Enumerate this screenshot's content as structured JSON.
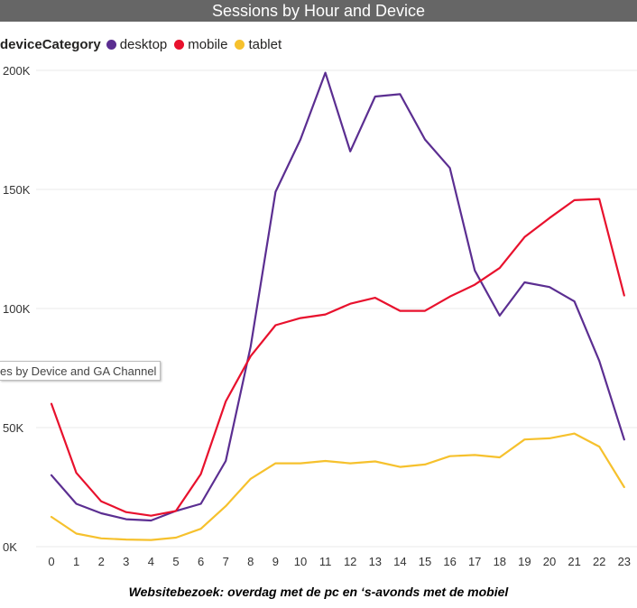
{
  "title": "Sessions by Hour and Device",
  "legend": {
    "title": "deviceCategory",
    "items": [
      {
        "name": "desktop",
        "color": "#5b2e91"
      },
      {
        "name": "mobile",
        "color": "#e8112d"
      },
      {
        "name": "tablet",
        "color": "#f6c12d"
      }
    ]
  },
  "tooltip_text": "es by Device and GA Channel",
  "caption": "Websitebezoek: overdag met de pc en ‘s-avonds met de mobiel",
  "chart_data": {
    "type": "line",
    "title": "Sessions by Hour and Device",
    "x": [
      0,
      1,
      2,
      3,
      4,
      5,
      6,
      7,
      8,
      9,
      10,
      11,
      12,
      13,
      14,
      15,
      16,
      17,
      18,
      19,
      20,
      21,
      22,
      23
    ],
    "ylim": [
      0,
      200000
    ],
    "yticks": [
      0,
      50000,
      100000,
      150000,
      200000
    ],
    "ytick_labels": [
      "0K",
      "50K",
      "100K",
      "150K",
      "200K"
    ],
    "grid": true,
    "legend_position": "top-left",
    "series": [
      {
        "name": "desktop",
        "color": "#5b2e91",
        "values": [
          30000,
          18000,
          14000,
          11500,
          11000,
          15000,
          18000,
          36000,
          84000,
          149000,
          171000,
          199000,
          166000,
          189000,
          190000,
          171000,
          159000,
          116000,
          97000,
          111000,
          109000,
          103000,
          78000,
          45000
        ]
      },
      {
        "name": "mobile",
        "color": "#e8112d",
        "values": [
          60000,
          31000,
          19000,
          14500,
          13000,
          15000,
          30500,
          61000,
          80000,
          93000,
          96000,
          97500,
          102000,
          104500,
          99000,
          99000,
          105000,
          110000,
          117000,
          130000,
          138000,
          145500,
          146000,
          105500
        ]
      },
      {
        "name": "tablet",
        "color": "#f6c12d",
        "values": [
          12500,
          5500,
          3500,
          3000,
          2800,
          3800,
          7500,
          17000,
          28500,
          35000,
          35000,
          36000,
          35000,
          35800,
          33500,
          34500,
          38000,
          38500,
          37500,
          45000,
          45500,
          47500,
          42000,
          25000
        ]
      }
    ]
  }
}
